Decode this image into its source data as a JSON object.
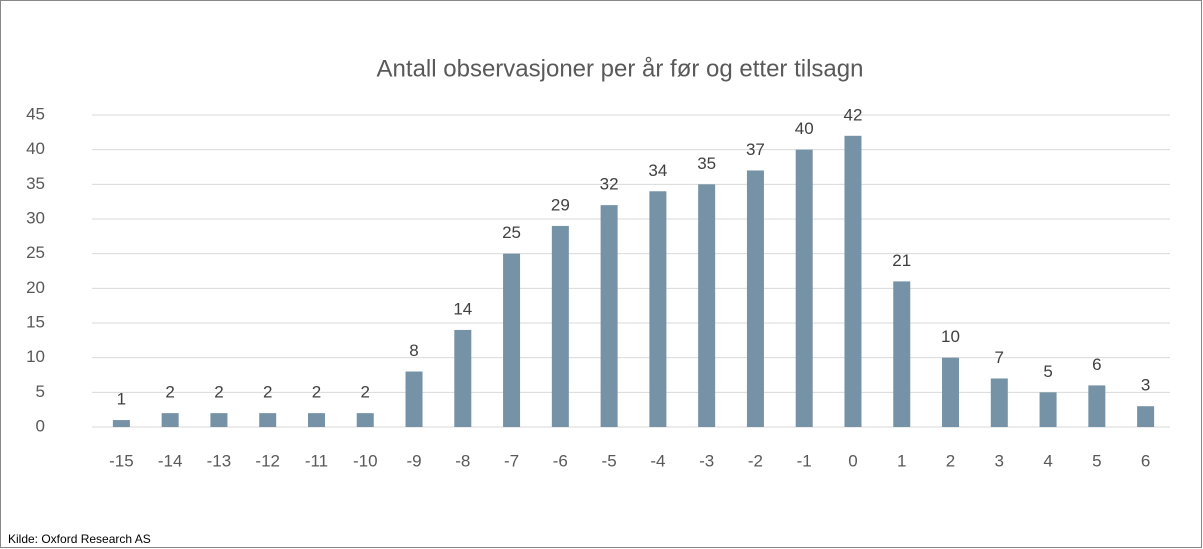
{
  "chart_data": {
    "type": "bar",
    "title": "Antall observasjoner per år før og etter tilsagn",
    "categories": [
      "-15",
      "-14",
      "-13",
      "-12",
      "-11",
      "-10",
      "-9",
      "-8",
      "-7",
      "-6",
      "-5",
      "-4",
      "-3",
      "-2",
      "-1",
      "0",
      "1",
      "2",
      "3",
      "4",
      "5",
      "6"
    ],
    "values": [
      1,
      2,
      2,
      2,
      2,
      2,
      8,
      14,
      25,
      29,
      32,
      34,
      35,
      37,
      40,
      42,
      21,
      10,
      7,
      5,
      6,
      3
    ],
    "color": "#7592a6",
    "ylim": [
      0,
      45
    ],
    "yticks": [
      0,
      5,
      10,
      15,
      20,
      25,
      30,
      35,
      40,
      45
    ],
    "grid": true,
    "source": "Kilde: Oxford Research AS"
  }
}
